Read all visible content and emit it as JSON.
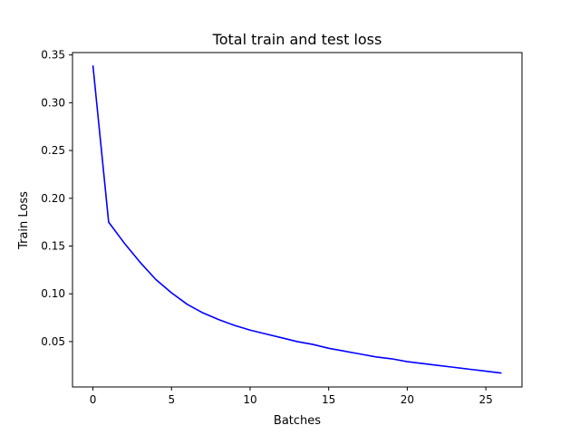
{
  "chart_data": {
    "type": "line",
    "title": "Total train and test loss",
    "xlabel": "Batches",
    "ylabel": "Train Loss",
    "xlim": [
      -1.3,
      27.3
    ],
    "ylim": [
      0.0025,
      0.3525
    ],
    "xticks": [
      0,
      5,
      10,
      15,
      20,
      25
    ],
    "yticks": [
      0.05,
      0.1,
      0.15,
      0.2,
      0.25,
      0.3,
      0.35
    ],
    "ytick_labels": [
      "0.05",
      "0.10",
      "0.15",
      "0.20",
      "0.25",
      "0.30",
      "0.35"
    ],
    "grid": false,
    "legend": null,
    "series": [
      {
        "color": "#0000ff",
        "x": [
          0,
          1,
          2,
          3,
          4,
          5,
          6,
          7,
          8,
          9,
          10,
          11,
          12,
          13,
          14,
          15,
          16,
          17,
          18,
          19,
          20,
          21,
          22,
          23,
          24,
          25,
          26
        ],
        "y": [
          0.339,
          0.175,
          0.153,
          0.133,
          0.115,
          0.101,
          0.089,
          0.08,
          0.073,
          0.067,
          0.062,
          0.058,
          0.054,
          0.05,
          0.047,
          0.043,
          0.04,
          0.037,
          0.034,
          0.032,
          0.029,
          0.027,
          0.025,
          0.023,
          0.021,
          0.019,
          0.017
        ]
      }
    ]
  }
}
